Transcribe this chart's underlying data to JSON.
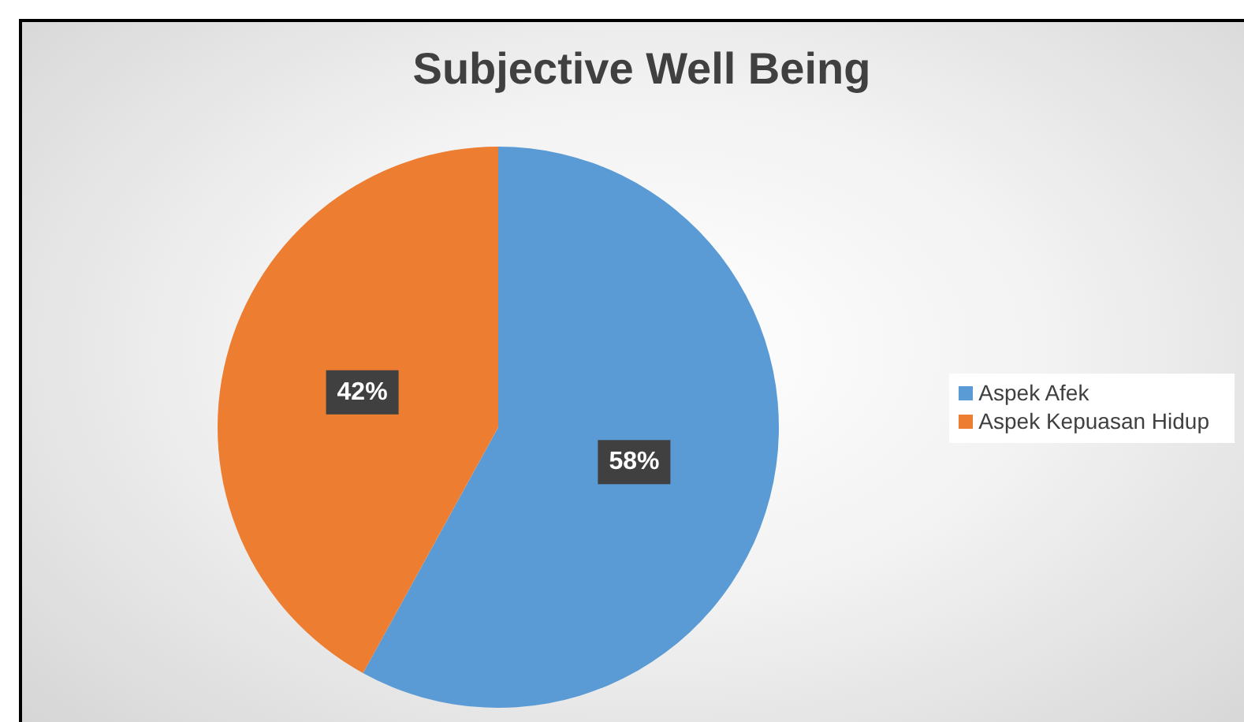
{
  "chart_data": {
    "type": "pie",
    "title": "Subjective Well Being",
    "categories": [
      "Aspek Afek",
      "Aspek Kepuasan Hidup"
    ],
    "values": [
      58,
      42
    ],
    "colors": [
      "#5b9bd5",
      "#ed7d31"
    ],
    "value_labels": [
      "58%",
      "42%"
    ],
    "legend": "right"
  }
}
